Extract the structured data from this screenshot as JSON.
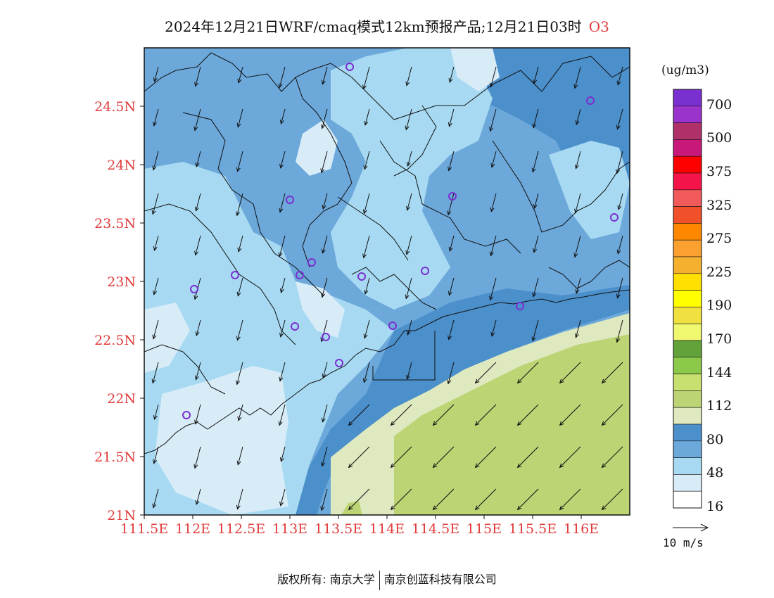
{
  "title": {
    "main": "2024年12月21日WRF/cmaq模式12km预报产品;12月21日03时",
    "species": "O3"
  },
  "map": {
    "lat_labels": [
      "24.5N",
      "24N",
      "23.5N",
      "23N",
      "22.5N",
      "22N",
      "21.5N",
      "21N"
    ],
    "lon_labels": [
      "111.5E",
      "112E",
      "112.5E",
      "113E",
      "113.5E",
      "114E",
      "114.5E",
      "115E",
      "115.5E",
      "116E"
    ],
    "lat_range": [
      21,
      25
    ],
    "lon_range": [
      111.5,
      116.5
    ],
    "label_color": "#e03c3c",
    "wind_vector_color": "#111111",
    "station_marker_color": "#7a2fd0"
  },
  "legend": {
    "unit": "(ug/m3)",
    "labels": [
      "700",
      "500",
      "375",
      "325",
      "275",
      "225",
      "190",
      "170",
      "144",
      "112",
      "80",
      "48",
      "16"
    ],
    "colors": [
      "#7a2fd0",
      "#9a33cc",
      "#b0306a",
      "#c8187a",
      "#ff0000",
      "#f5144a",
      "#f05a5a",
      "#f0502a",
      "#ff8800",
      "#fca030",
      "#f5b030",
      "#ffe000",
      "#ffff00",
      "#f0e040",
      "#f0f870",
      "#62a23a",
      "#8cc84a",
      "#c8e070",
      "#bcd474",
      "#dfe9c0",
      "#4b8fcb",
      "#6ca8da",
      "#a7daf2",
      "#d8ecf8",
      "#ffffff"
    ],
    "wind_ref_label": "10 m/s"
  },
  "footer": {
    "left": "版权所有: 南京大学",
    "right": "南京创蓝科技有限公司"
  }
}
